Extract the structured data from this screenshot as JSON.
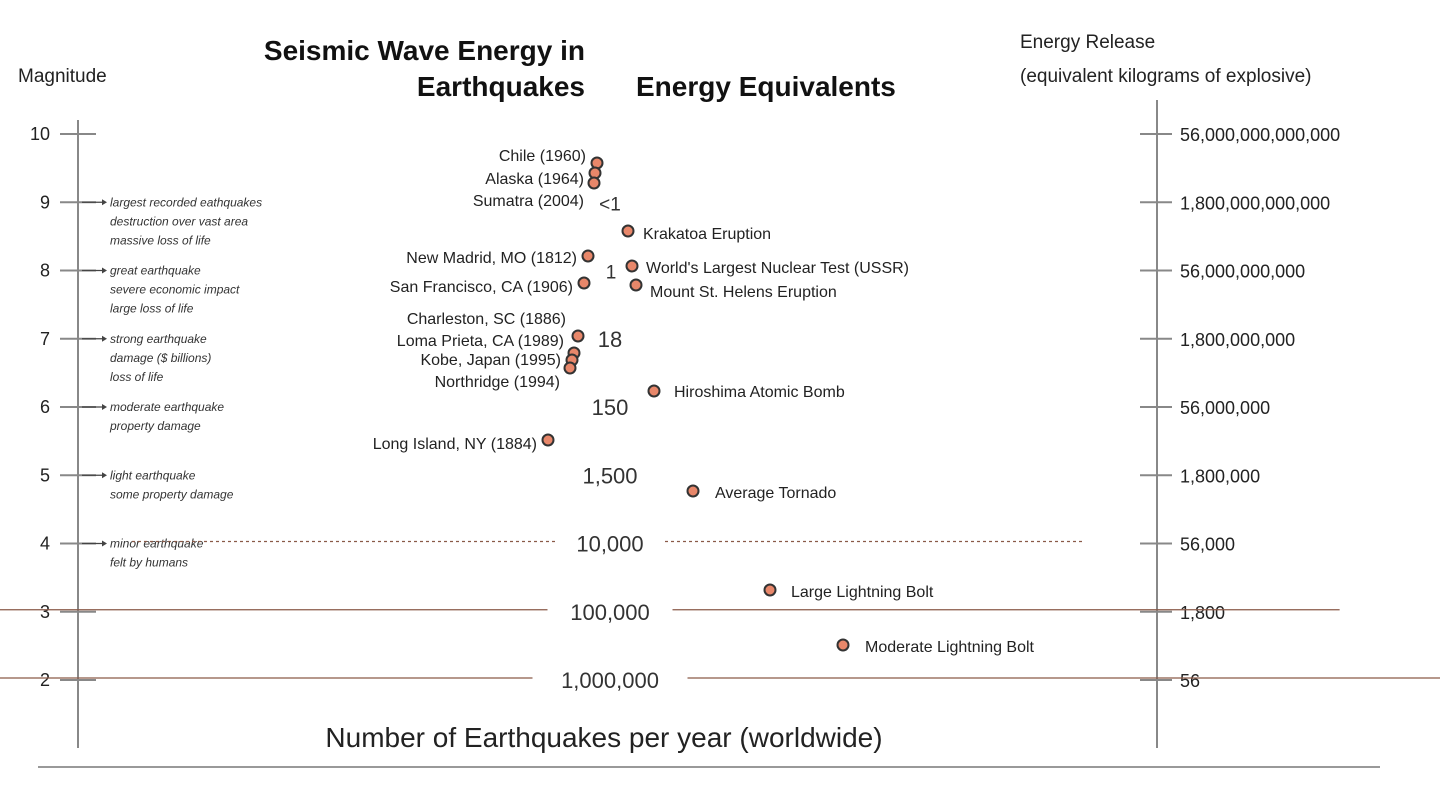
{
  "title_left_line1": "Seismic Wave Energy in",
  "title_left_line2": "Earthquakes",
  "title_center": "Energy Equivalents",
  "left_axis": {
    "title": "Magnitude",
    "ticks": [
      "10",
      "9",
      "8",
      "7",
      "6",
      "5",
      "4",
      "3",
      "2"
    ]
  },
  "right_axis": {
    "title_line1": "Energy Release",
    "title_line2": "(equivalent kilograms of explosive)",
    "ticks": [
      "56,000,000,000,000",
      "1,800,000,000,000",
      "56,000,000,000",
      "1,800,000,000",
      "56,000,000",
      "1,800,000",
      "56,000",
      "1,800",
      "56"
    ]
  },
  "descriptions": [
    {
      "magnitude": 9,
      "lines": [
        "largest recorded eathquakes",
        "destruction over vast area",
        "massive loss of life"
      ]
    },
    {
      "magnitude": 8,
      "lines": [
        "great earthquake",
        "severe economic impact",
        "large loss of life"
      ]
    },
    {
      "magnitude": 7,
      "lines": [
        "strong earthquake",
        "damage ($ billions)",
        "loss of life"
      ]
    },
    {
      "magnitude": 6,
      "lines": [
        "moderate earthquake",
        "property damage"
      ]
    },
    {
      "magnitude": 5,
      "lines": [
        "light earthquake",
        "some property damage"
      ]
    },
    {
      "magnitude": 4,
      "lines": [
        "minor earthquake",
        "felt by humans"
      ]
    }
  ],
  "counts_per_year": [
    {
      "magnitude": 9,
      "label": "<1"
    },
    {
      "magnitude": 8,
      "label": "1"
    },
    {
      "magnitude": 7,
      "label": "18"
    },
    {
      "magnitude": 6,
      "label": "150"
    },
    {
      "magnitude": 5,
      "label": "1,500"
    },
    {
      "magnitude": 4,
      "label": "10,000"
    },
    {
      "magnitude": 3,
      "label": "100,000"
    },
    {
      "magnitude": 2,
      "label": "1,000,000"
    }
  ],
  "earthquakes": [
    {
      "label": "Chile (1960)",
      "magnitude": 9.5
    },
    {
      "label": "Alaska (1964)",
      "magnitude": 9.2
    },
    {
      "label": "Sumatra (2004)",
      "magnitude": 9.1
    },
    {
      "label": "New Madrid, MO (1812)",
      "magnitude": 8.2
    },
    {
      "label": "San Francisco, CA (1906)",
      "magnitude": 7.8
    },
    {
      "label": "Charleston, SC (1886)",
      "magnitude": 7.3
    },
    {
      "label": "Loma Prieta, CA (1989)",
      "magnitude": 6.9
    },
    {
      "label": "Kobe, Japan (1995)",
      "magnitude": 6.9
    },
    {
      "label": "Northridge (1994)",
      "magnitude": 6.7
    },
    {
      "label": "Long Island, NY (1884)",
      "magnitude": 5.5
    }
  ],
  "equivalents": [
    {
      "label": "Krakatoa Eruption",
      "magnitude": 8.6
    },
    {
      "label": "World's Largest Nuclear Test (USSR)",
      "magnitude": 8.1
    },
    {
      "label": "Mount St. Helens Eruption",
      "magnitude": 7.8
    },
    {
      "label": "Hiroshima Atomic Bomb",
      "magnitude": 6.3
    },
    {
      "label": "Average Tornado",
      "magnitude": 5.0
    },
    {
      "label": "Large Lightning Bolt",
      "magnitude": 3.3
    },
    {
      "label": "Moderate Lightning Bolt",
      "magnitude": 2.5
    }
  ],
  "bottom_caption": "Number of Earthquakes per year (worldwide)",
  "colors": {
    "funnel_fill_top": "#f8d9c9",
    "funnel_fill_bottom": "#e9957a",
    "funnel_stroke": "#777777",
    "axis": "#888888",
    "dot_fill": "#e8876a",
    "dot_stroke": "#333333"
  }
}
